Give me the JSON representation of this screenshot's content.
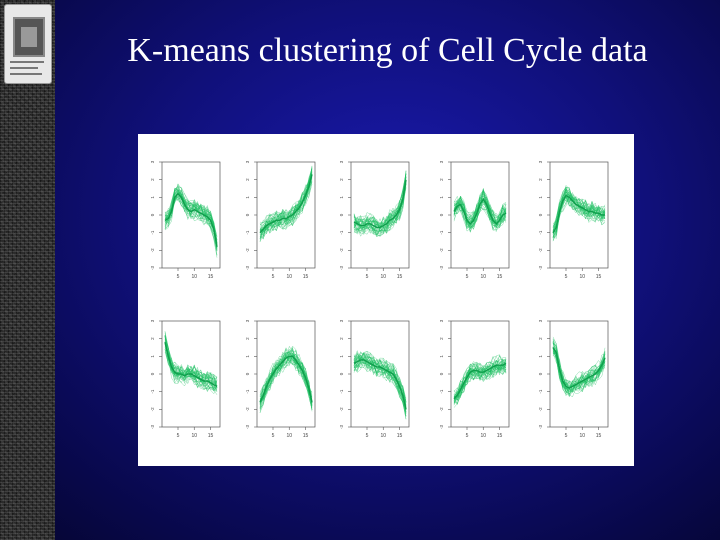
{
  "slide": {
    "title": "K-means clustering of Cell Cycle data"
  },
  "colors": {
    "background": "#10107a",
    "series": "#1fbf63",
    "title": "#ffffff"
  },
  "chart_data": [
    {
      "type": "line",
      "panel": 1,
      "x_ticks": [
        "5",
        "10",
        "15"
      ],
      "y_ticks": [
        "-3",
        "-2",
        "-1",
        "0",
        "1",
        "2",
        "3"
      ],
      "ylim": [
        -3,
        3
      ],
      "profile": [
        -0.3,
        -0.2,
        0.2,
        1.0,
        1.2,
        1.0,
        0.6,
        0.3,
        0.2,
        0.3,
        0.2,
        0.1,
        0.0,
        -0.1,
        -0.3,
        -0.8,
        -1.8
      ]
    },
    {
      "type": "line",
      "panel": 2,
      "x_ticks": [
        "5",
        "10",
        "15"
      ],
      "y_ticks": [
        "-3",
        "-2",
        "-1",
        "0",
        "1",
        "2",
        "3"
      ],
      "ylim": [
        -3,
        3
      ],
      "profile": [
        -1.0,
        -0.8,
        -0.6,
        -0.5,
        -0.4,
        -0.3,
        -0.3,
        -0.2,
        -0.2,
        -0.1,
        0.0,
        0.2,
        0.4,
        0.7,
        1.1,
        1.6,
        2.3
      ]
    },
    {
      "type": "line",
      "panel": 3,
      "x_ticks": [
        "5",
        "10",
        "15"
      ],
      "y_ticks": [
        "-3",
        "-2",
        "-1",
        "0",
        "1",
        "2",
        "3"
      ],
      "ylim": [
        -3,
        3
      ],
      "profile": [
        -0.4,
        -0.5,
        -0.6,
        -0.6,
        -0.5,
        -0.5,
        -0.6,
        -0.7,
        -0.7,
        -0.6,
        -0.5,
        -0.3,
        -0.2,
        0.0,
        0.3,
        0.9,
        2.0
      ]
    },
    {
      "type": "line",
      "panel": 4,
      "x_ticks": [
        "5",
        "10",
        "15"
      ],
      "y_ticks": [
        "-3",
        "-2",
        "-1",
        "0",
        "1",
        "2",
        "3"
      ],
      "ylim": [
        -3,
        3
      ],
      "profile": [
        0.2,
        0.5,
        0.6,
        0.2,
        -0.3,
        -0.5,
        -0.3,
        0.1,
        0.6,
        0.9,
        0.6,
        0.1,
        -0.3,
        -0.5,
        -0.3,
        0.0,
        0.1
      ]
    },
    {
      "type": "line",
      "panel": 5,
      "x_ticks": [
        "5",
        "10",
        "15"
      ],
      "y_ticks": [
        "-3",
        "-2",
        "-1",
        "0",
        "1",
        "2",
        "3"
      ],
      "ylim": [
        -3,
        3
      ],
      "profile": [
        -1.0,
        -0.7,
        0.2,
        0.8,
        1.1,
        1.0,
        0.8,
        0.6,
        0.5,
        0.4,
        0.3,
        0.2,
        0.2,
        0.1,
        0.1,
        0.0,
        0.0
      ]
    },
    {
      "type": "line",
      "panel": 6,
      "x_ticks": [
        "5",
        "10",
        "15"
      ],
      "y_ticks": [
        "-3",
        "-2",
        "-1",
        "0",
        "1",
        "2",
        "3"
      ],
      "ylim": [
        -3,
        3
      ],
      "profile": [
        1.8,
        1.0,
        0.4,
        0.1,
        0.0,
        0.0,
        -0.1,
        0.0,
        0.0,
        -0.1,
        -0.2,
        -0.3,
        -0.4,
        -0.4,
        -0.5,
        -0.6,
        -0.7
      ]
    },
    {
      "type": "line",
      "panel": 7,
      "x_ticks": [
        "5",
        "10",
        "15"
      ],
      "y_ticks": [
        "-3",
        "-2",
        "-1",
        "0",
        "1",
        "2",
        "3"
      ],
      "ylim": [
        -3,
        3
      ],
      "profile": [
        -1.6,
        -1.2,
        -0.7,
        -0.3,
        0.0,
        0.3,
        0.5,
        0.7,
        0.9,
        1.0,
        1.0,
        0.8,
        0.5,
        0.2,
        -0.2,
        -0.8,
        -1.6
      ]
    },
    {
      "type": "line",
      "panel": 8,
      "x_ticks": [
        "5",
        "10",
        "15"
      ],
      "y_ticks": [
        "-3",
        "-2",
        "-1",
        "0",
        "1",
        "2",
        "3"
      ],
      "ylim": [
        -3,
        3
      ],
      "profile": [
        0.6,
        0.7,
        0.8,
        0.8,
        0.7,
        0.6,
        0.5,
        0.4,
        0.4,
        0.3,
        0.2,
        0.1,
        0.0,
        -0.3,
        -0.7,
        -1.2,
        -2.0
      ]
    },
    {
      "type": "line",
      "panel": 9,
      "x_ticks": [
        "5",
        "10",
        "15"
      ],
      "y_ticks": [
        "-3",
        "-2",
        "-1",
        "0",
        "1",
        "2",
        "3"
      ],
      "ylim": [
        -3,
        3
      ],
      "profile": [
        -1.4,
        -1.2,
        -0.9,
        -0.5,
        -0.2,
        0.1,
        0.2,
        0.2,
        0.1,
        0.1,
        0.2,
        0.3,
        0.4,
        0.5,
        0.5,
        0.5,
        0.6
      ]
    },
    {
      "type": "line",
      "panel": 10,
      "x_ticks": [
        "5",
        "10",
        "15"
      ],
      "y_ticks": [
        "-3",
        "-2",
        "-1",
        "0",
        "1",
        "2",
        "3"
      ],
      "ylim": [
        -3,
        3
      ],
      "profile": [
        1.5,
        1.2,
        0.3,
        -0.4,
        -0.7,
        -0.8,
        -0.7,
        -0.6,
        -0.5,
        -0.4,
        -0.3,
        -0.2,
        -0.1,
        0.0,
        0.2,
        0.5,
        0.9
      ]
    }
  ]
}
